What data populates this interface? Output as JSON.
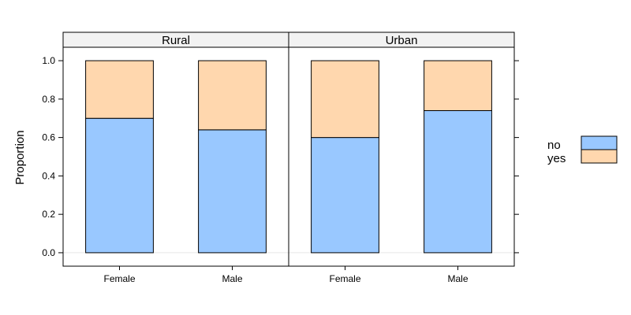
{
  "chart_data": {
    "type": "bar",
    "stacked": true,
    "ylabel": "Proportion",
    "ylim": [
      -0.07,
      1.07
    ],
    "yticks": [
      "0.0",
      "0.2",
      "0.4",
      "0.6",
      "0.8",
      "1.0"
    ],
    "panels": [
      {
        "strip": "Rural",
        "categories": [
          "Female",
          "Male"
        ],
        "series": [
          {
            "name": "no",
            "values": [
              0.7,
              0.64
            ]
          },
          {
            "name": "yes",
            "values": [
              0.3,
              0.36
            ]
          }
        ]
      },
      {
        "strip": "Urban",
        "categories": [
          "Female",
          "Male"
        ],
        "series": [
          {
            "name": "no",
            "values": [
              0.6,
              0.74
            ]
          },
          {
            "name": "yes",
            "values": [
              0.4,
              0.26
            ]
          }
        ]
      }
    ],
    "legend": {
      "placement": "right",
      "items": [
        {
          "label": "no",
          "color": "#99c8ff"
        },
        {
          "label": "yes",
          "color": "#ffd7ae"
        }
      ]
    },
    "colors": {
      "no": "#99c8ff",
      "yes": "#ffd7ae",
      "strip_bg": "#f2f2f2",
      "zero_line": "#e6e6e6"
    }
  }
}
